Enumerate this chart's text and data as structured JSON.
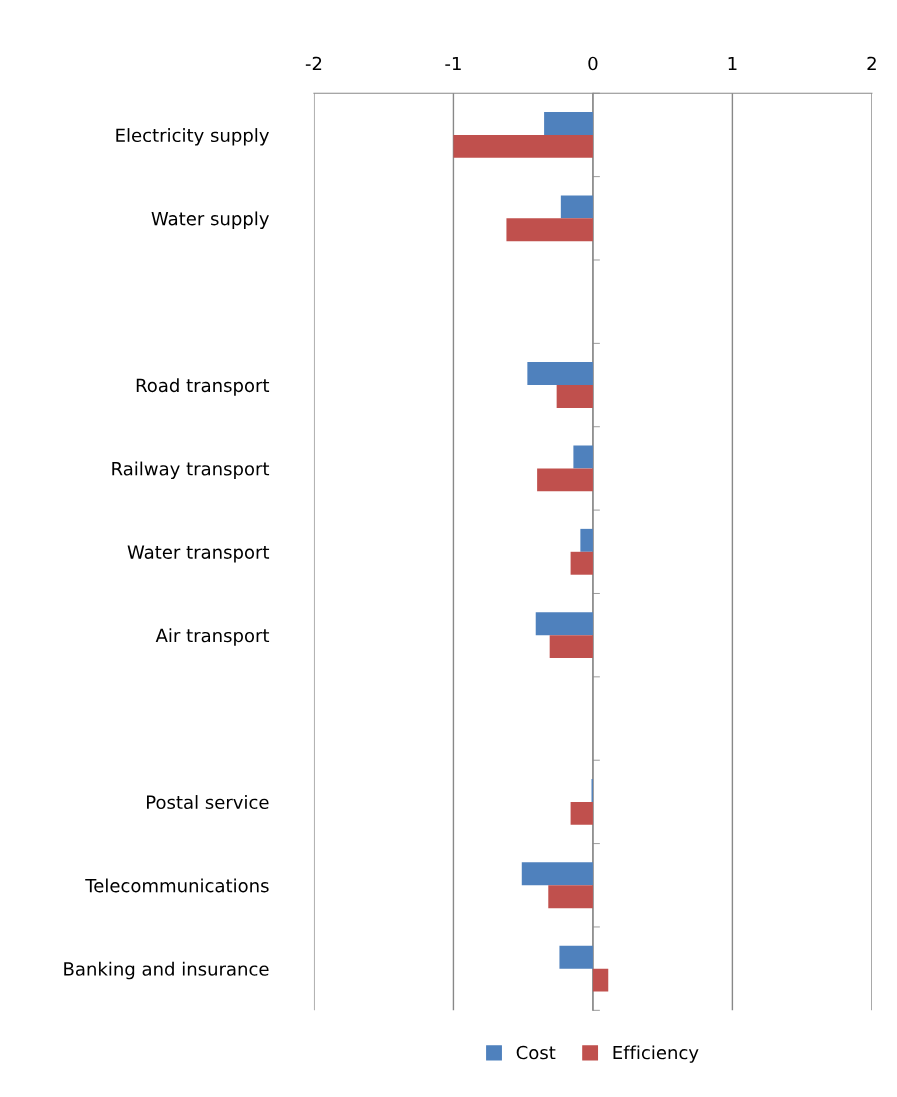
{
  "chart_data": {
    "type": "bar",
    "orientation": "horizontal",
    "categories": [
      "Electricity supply",
      "Water supply",
      null,
      "Road transport",
      "Railway transport",
      "Water transport",
      "Air transport",
      null,
      "Postal service",
      "Telecommunications",
      "Banking and insurance"
    ],
    "series": [
      {
        "name": "Cost",
        "color": "#4f81bd",
        "values": [
          -0.35,
          -0.23,
          null,
          -0.47,
          -0.14,
          -0.09,
          -0.41,
          null,
          -0.01,
          -0.51,
          -0.24
        ]
      },
      {
        "name": "Efficiency",
        "color": "#c0504d",
        "values": [
          -1.0,
          -0.62,
          null,
          -0.26,
          -0.4,
          -0.16,
          -0.31,
          null,
          -0.16,
          -0.32,
          0.11
        ]
      }
    ],
    "xlim": [
      -2,
      2
    ],
    "xticks": [
      -2,
      -1,
      0,
      1,
      2
    ],
    "grid": "x",
    "legend": "bottom"
  }
}
